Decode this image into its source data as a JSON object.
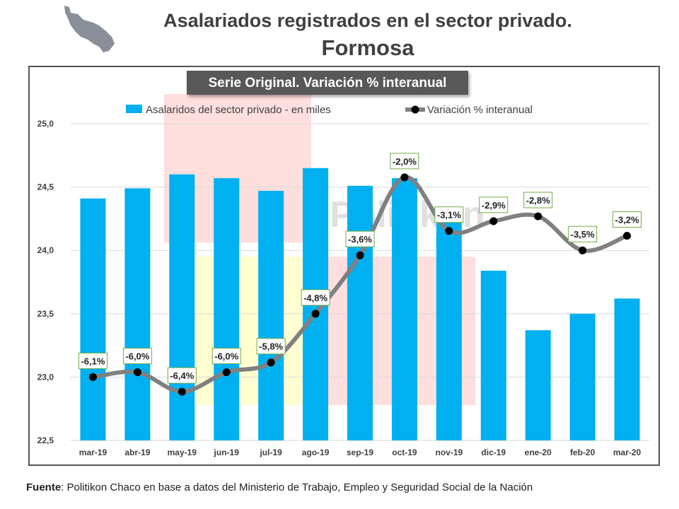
{
  "header": {
    "title": "Asalariados registrados en el sector privado.",
    "subtitle": "Formosa"
  },
  "source": {
    "label": "Fuente",
    "text": ": Politikon Chaco en base a datos del Ministerio de Trabajo, Empleo y Seguridad Social de la Nación"
  },
  "watermark": "Politikon",
  "colors": {
    "bar": "#00B0F0",
    "line": "#808080",
    "marker": "#000000",
    "label_border": "#70AD47",
    "banner_bg": "#595959",
    "banner_text": "#FFFFFF"
  },
  "chart_data": {
    "type": "bar",
    "title": "Serie Original. Variación % interanual",
    "categories": [
      "mar-19",
      "abr-19",
      "may-19",
      "jun-19",
      "jul-19",
      "ago-19",
      "sep-19",
      "oct-19",
      "nov-19",
      "dic-19",
      "ene-20",
      "feb-20",
      "mar-20"
    ],
    "series": [
      {
        "name": "Asalaridos del sector privado - en miles",
        "type": "bar",
        "values": [
          24.41,
          24.49,
          24.6,
          24.57,
          24.47,
          24.65,
          24.51,
          24.57,
          24.3,
          23.84,
          23.37,
          23.5,
          23.62
        ]
      },
      {
        "name": "Variación % interanual",
        "type": "line",
        "values": [
          -6.1,
          -6.0,
          -6.4,
          -6.0,
          -5.8,
          -4.8,
          -3.6,
          -2.0,
          -3.1,
          -2.9,
          -2.8,
          -3.5,
          -3.2
        ],
        "labels": [
          "-6,1%",
          "-6,0%",
          "-6,4%",
          "-6,0%",
          "-5,8%",
          "-4,8%",
          "-3,6%",
          "-2,0%",
          "-3,1%",
          "-2,9%",
          "-2,8%",
          "-3,5%",
          "-3,2%"
        ]
      }
    ],
    "y_axis": {
      "ylim": [
        22.5,
        25.0
      ],
      "ticks": [
        "22,5",
        "23,0",
        "23,5",
        "24,0",
        "24,5",
        "25,0"
      ]
    },
    "grid": true,
    "legend_position": "top"
  }
}
